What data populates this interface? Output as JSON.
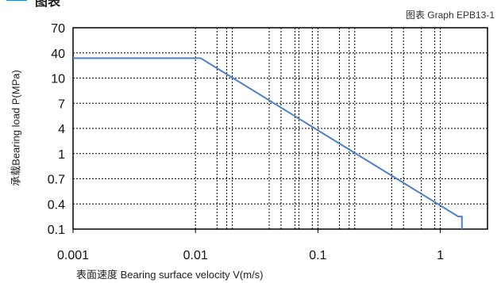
{
  "section_header": "图表",
  "chart_data": {
    "type": "line",
    "caption": "图表 Graph EPB13-1",
    "xlabel": "表面速度 Bearing surface velocity V(m/s)",
    "ylabel": "承载Bearing load P(MPa)",
    "x_scale": "log",
    "xlim": [
      0.001,
      1.5
    ],
    "x_ticks": [
      0.001,
      0.01,
      0.1,
      1
    ],
    "x_tick_labels": [
      "0.001",
      "0.01",
      "0.1",
      "1"
    ],
    "x_minor_ticks": [
      0.015,
      0.018,
      0.02,
      0.04,
      0.05,
      0.065,
      0.07,
      0.09,
      0.15,
      0.18,
      0.2,
      0.4,
      0.5,
      0.7,
      0.9
    ],
    "y_tick_labels": [
      "70",
      "40",
      "10",
      "7",
      "4",
      "1",
      "0.7",
      "0.4",
      "0.1"
    ],
    "grid": true,
    "series": [
      {
        "color": "#4f7fc6",
        "x": [
          0.001,
          0.011,
          1.4,
          1.5
        ],
        "y": [
          30,
          30,
          0.2,
          0.2
        ],
        "y_end": 0.1
      }
    ]
  }
}
